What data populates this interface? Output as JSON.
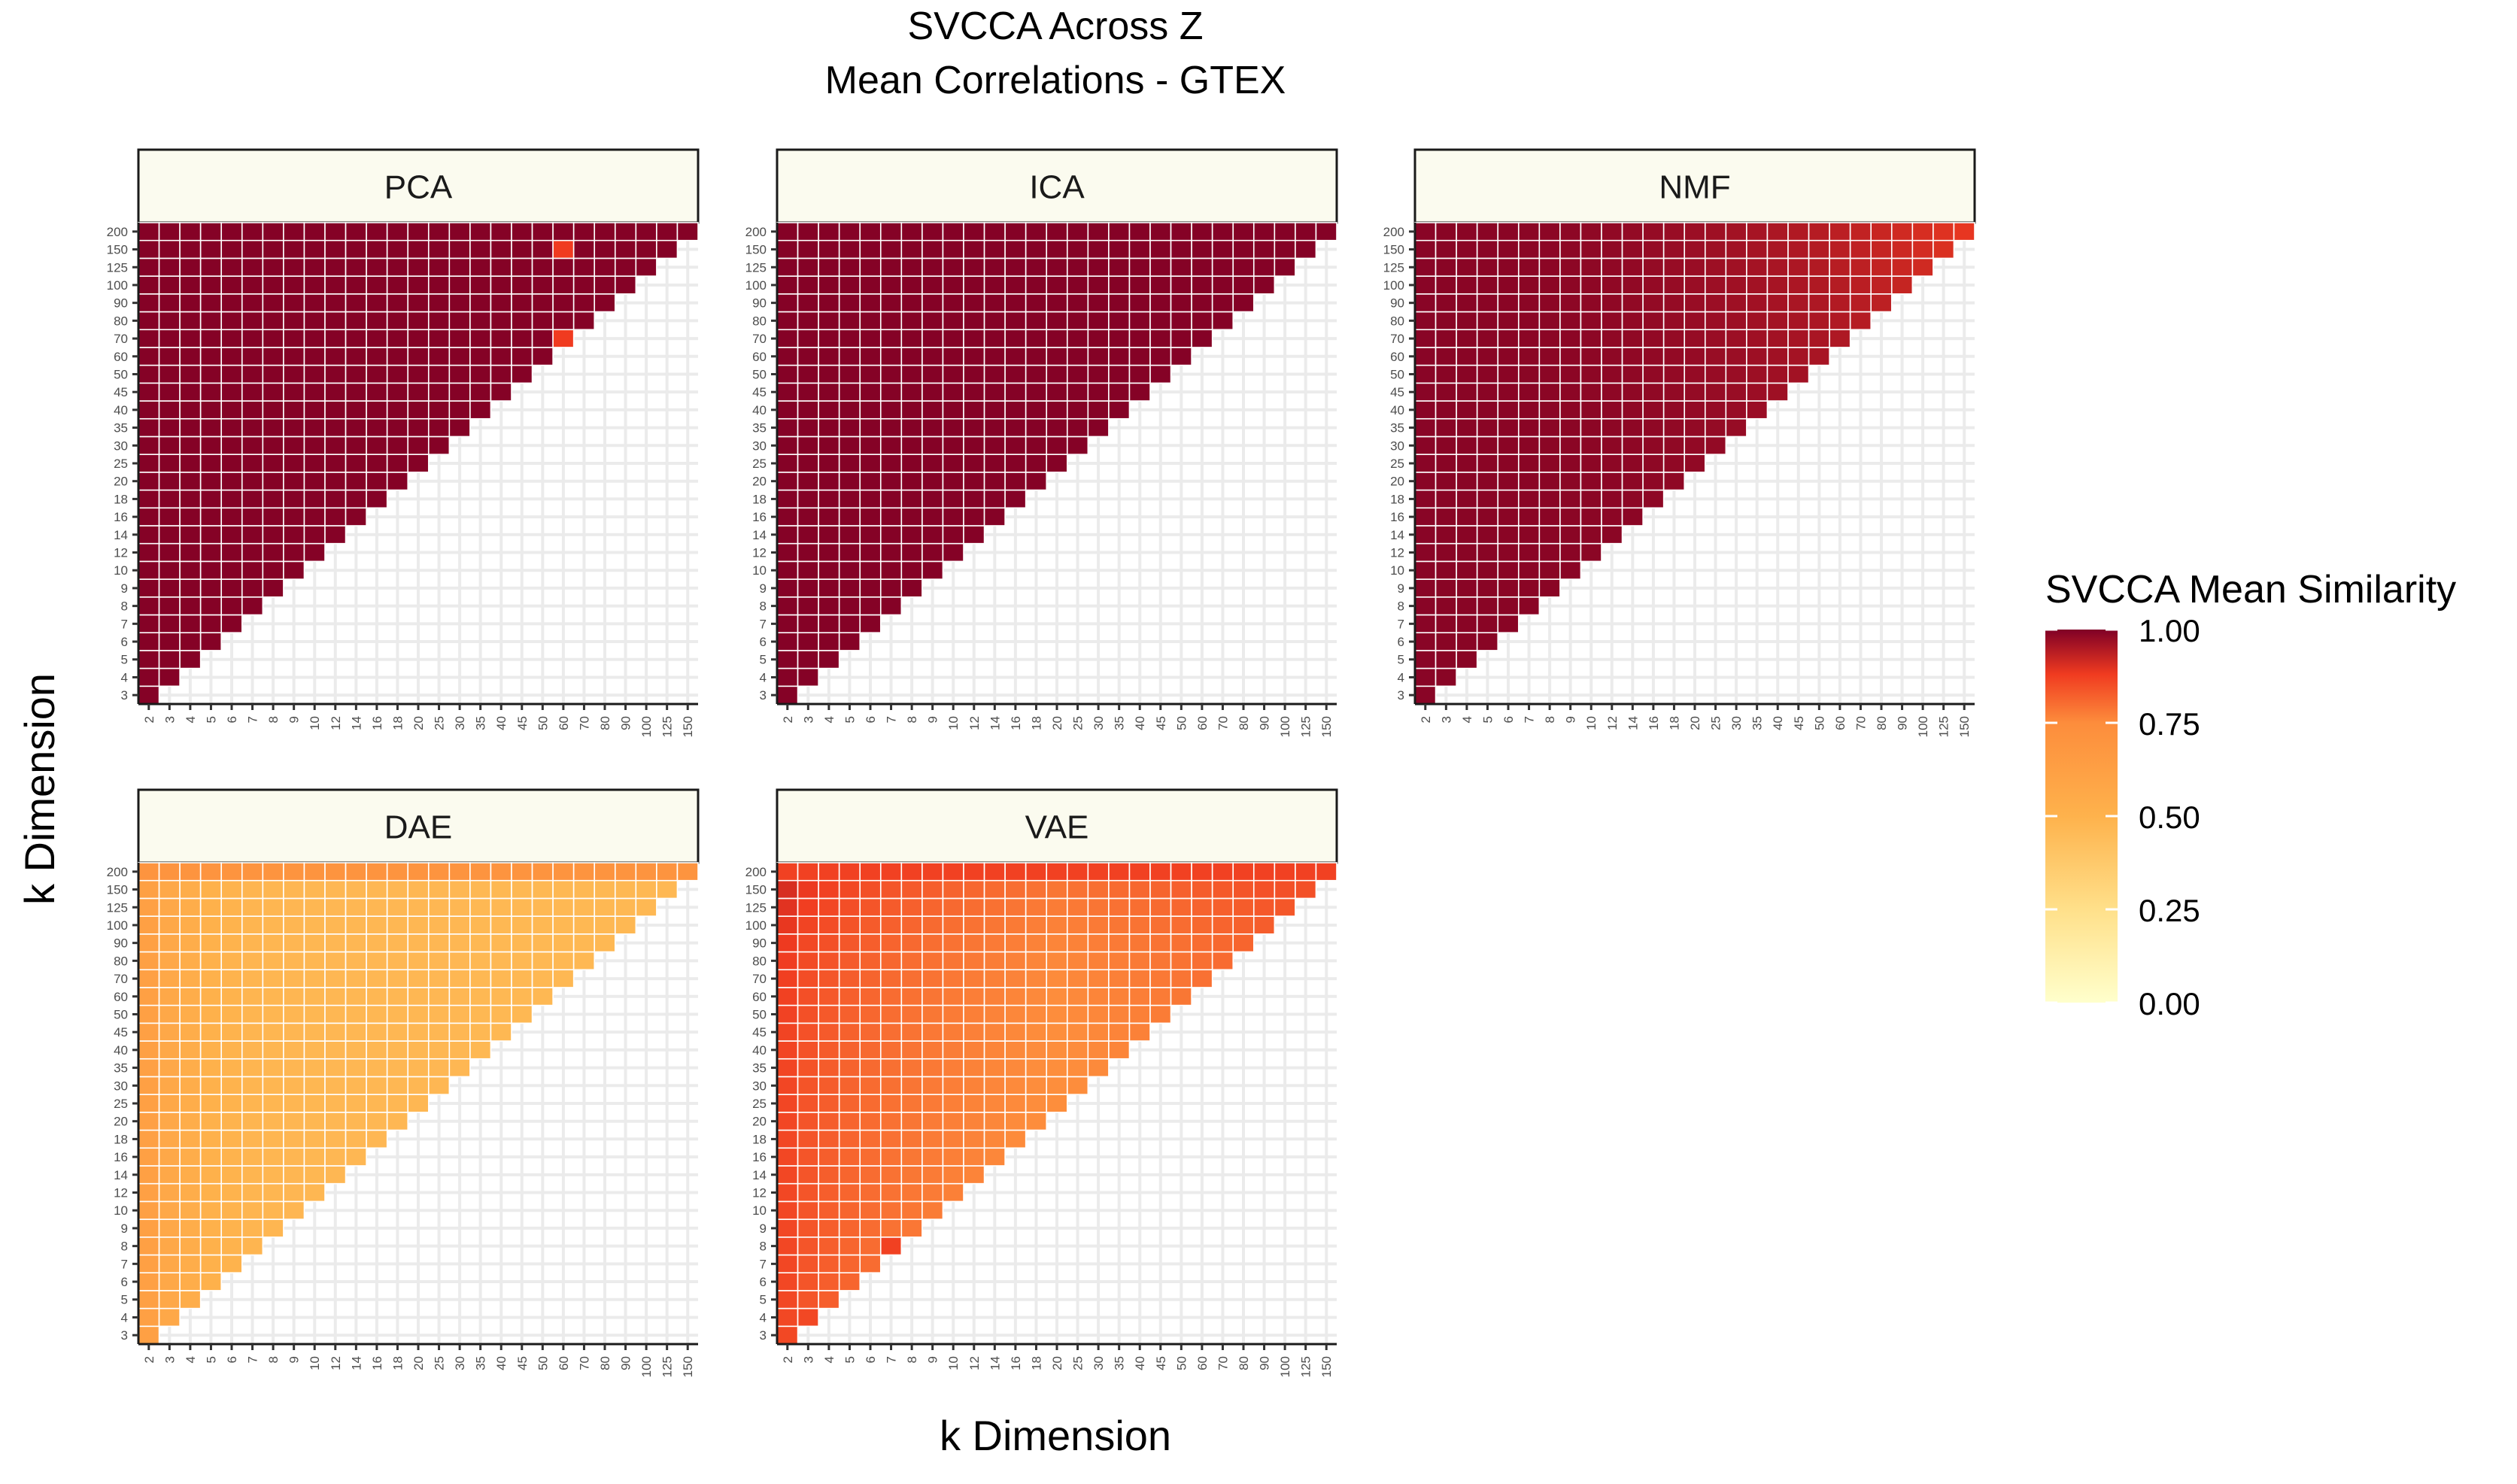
{
  "chart_data": {
    "type": "heatmap",
    "title": "SVCCA Across Z",
    "subtitle": "Mean Correlations - GTEX",
    "xlabel": "k Dimension",
    "ylabel": "k Dimension",
    "x_ticks": [
      "2",
      "3",
      "4",
      "5",
      "6",
      "7",
      "8",
      "9",
      "10",
      "12",
      "14",
      "16",
      "18",
      "20",
      "25",
      "30",
      "35",
      "40",
      "45",
      "50",
      "60",
      "70",
      "80",
      "90",
      "100",
      "125",
      "150"
    ],
    "y_ticks": [
      "3",
      "4",
      "5",
      "6",
      "7",
      "8",
      "9",
      "10",
      "12",
      "14",
      "16",
      "18",
      "20",
      "25",
      "30",
      "35",
      "40",
      "45",
      "50",
      "60",
      "70",
      "80",
      "90",
      "100",
      "125",
      "150",
      "200"
    ],
    "cell_rule": "a cell exists for x index i and y index j when i <= j (lower triangle incl. diagonal)",
    "legend": {
      "title": "SVCCA Mean Similarity",
      "labels": [
        "1.00",
        "0.75",
        "0.50",
        "0.25",
        "0.00"
      ],
      "stops": [
        {
          "v": 0.0,
          "color": "#ffffcc"
        },
        {
          "v": 0.25,
          "color": "#ffe08a"
        },
        {
          "v": 0.5,
          "color": "#feb24c"
        },
        {
          "v": 0.75,
          "color": "#fd8d3c"
        },
        {
          "v": 0.88,
          "color": "#f03b20"
        },
        {
          "v": 1.0,
          "color": "#800026"
        }
      ]
    },
    "panels": [
      {
        "name": "PCA",
        "model": {
          "base": 0.995,
          "edge_x": 0.0,
          "edge_y": 0.0,
          "band_x": 0.0,
          "band_y": 0.0
        },
        "exceptions": [
          {
            "x": "60",
            "y": "70",
            "v": 0.88
          },
          {
            "x": "60",
            "y": "150",
            "v": 0.88
          }
        ]
      },
      {
        "name": "ICA",
        "model": {
          "base": 0.995,
          "edge_x": 0.0,
          "edge_y": 0.0,
          "band_x": 0.0,
          "band_y": 0.0
        },
        "exceptions": []
      },
      {
        "name": "NMF",
        "model": {
          "base": 0.99,
          "edge_x": 0.0,
          "edge_y": 0.0,
          "band_x": 0.0,
          "band_y": 0.0,
          "upper_right_drop": 0.1
        },
        "exceptions": []
      },
      {
        "name": "DAE",
        "model": {
          "base": 0.47,
          "edge_x": 0.15,
          "edge_y": 0.0,
          "band_x": 0.0,
          "band_y": 0.0,
          "top_row": 0.7
        },
        "exceptions": []
      },
      {
        "name": "VAE",
        "model": {
          "base": 0.8,
          "edge_x": 0.06,
          "edge_y": 0.06,
          "band_x": -0.06,
          "band_y": 0.0,
          "top_row": 0.87
        },
        "exceptions": [
          {
            "x": "7",
            "y": "8",
            "v": 0.87
          },
          {
            "x": "3",
            "y": "4",
            "v": 0.86
          }
        ]
      }
    ]
  }
}
